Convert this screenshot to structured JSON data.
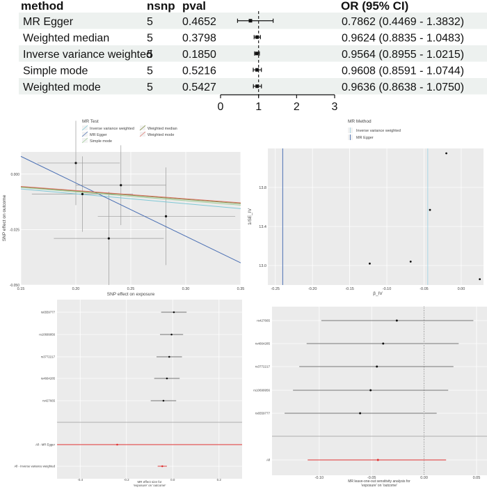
{
  "forest_table": {
    "headers": {
      "method": "method",
      "nsnp": "nsnp",
      "pval": "pval",
      "or": "OR (95% CI)"
    },
    "rows": [
      {
        "method": "MR Egger",
        "nsnp": "5",
        "pval": "0.4652",
        "or_ci": "0.7862 (0.4469 - 1.3832)"
      },
      {
        "method": "Weighted median",
        "nsnp": "5",
        "pval": "0.3798",
        "or_ci": "0.9624 (0.8835 - 1.0483)"
      },
      {
        "method": "Inverse variance weighted",
        "nsnp": "5",
        "pval": "0.1850",
        "or_ci": "0.9564 (0.8955 - 1.0215)"
      },
      {
        "method": "Simple mode",
        "nsnp": "5",
        "pval": "0.5216",
        "or_ci": "0.9608 (0.8591 - 1.0744)"
      },
      {
        "method": "Weighted mode",
        "nsnp": "5",
        "pval": "0.5427",
        "or_ci": "0.9636 (0.8638 - 1.0750)"
      }
    ],
    "stripe_color": "#edf1ef"
  },
  "chart_data": [
    {
      "type": "forest",
      "id": "or-forest",
      "points": [
        {
          "label": "MR Egger",
          "or": 0.7862,
          "lo": 0.4469,
          "hi": 1.3832
        },
        {
          "label": "Weighted median",
          "or": 0.9624,
          "lo": 0.8835,
          "hi": 1.0483
        },
        {
          "label": "Inverse variance weighted",
          "or": 0.9564,
          "lo": 0.8955,
          "hi": 1.0215
        },
        {
          "label": "Simple mode",
          "or": 0.9608,
          "lo": 0.8591,
          "hi": 1.0744
        },
        {
          "label": "Weighted mode",
          "or": 0.9636,
          "lo": 0.8638,
          "hi": 1.075
        }
      ],
      "xlim": [
        0,
        3
      ],
      "xticks": [
        "0",
        "1",
        "2",
        "3"
      ],
      "reference": 1
    },
    {
      "type": "scatter",
      "id": "mr-scatter",
      "xlabel": "SNP effect on exposure",
      "ylabel": "SNP effect on outcome",
      "xlim": [
        0.15,
        0.35
      ],
      "ylim": [
        -0.05,
        0.01
      ],
      "xticks": [
        "0.15",
        "0.20",
        "0.25",
        "0.30",
        "0.35"
      ],
      "yticks": [
        "-0.050",
        "-0.025",
        "0.000"
      ],
      "points": [
        {
          "x": 0.2,
          "y": 0.005,
          "xlo": 0.165,
          "xhi": 0.24,
          "ylo": -0.014,
          "yhi": 0.024
        },
        {
          "x": 0.206,
          "y": -0.009,
          "xlo": 0.16,
          "xhi": 0.252,
          "ylo": -0.026,
          "yhi": 0.008
        },
        {
          "x": 0.241,
          "y": -0.005,
          "xlo": 0.2,
          "xhi": 0.282,
          "ylo": -0.023,
          "yhi": 0.013
        },
        {
          "x": 0.23,
          "y": -0.029,
          "xlo": 0.18,
          "xhi": 0.28,
          "ylo": -0.05,
          "yhi": -0.008
        },
        {
          "x": 0.282,
          "y": -0.019,
          "xlo": 0.22,
          "xhi": 0.345,
          "ylo": -0.041,
          "yhi": 0.003
        }
      ],
      "lines": [
        {
          "name": "Inverse variance weighted",
          "slope": -0.0445,
          "intercept": 0,
          "color": "#7fc8d6"
        },
        {
          "name": "MR Egger",
          "slope": -0.24,
          "intercept": 0.044,
          "color": "#4a6fb3"
        },
        {
          "name": "Simple mode",
          "slope": -0.04,
          "intercept": 0,
          "color": "#9fce9a"
        },
        {
          "name": "Weighted median",
          "slope": -0.038,
          "intercept": 0,
          "color": "#7a8a3a"
        },
        {
          "name": "Weighted mode",
          "slope": -0.037,
          "intercept": 0,
          "color": "#e0786f"
        }
      ],
      "legend": {
        "title": "MR Test",
        "placement": "top",
        "items": [
          "Inverse variance weighted",
          "Weighted median",
          "MR Egger",
          "Weighted mode",
          "Simple mode"
        ]
      },
      "grid": true
    },
    {
      "type": "scatter",
      "id": "funnel",
      "xlabel": "β_IV",
      "ylabel": "1/SE_IV",
      "xlim": [
        -0.26,
        0.03
      ],
      "ylim": [
        12.8,
        14.2
      ],
      "xticks": [
        "-0.25",
        "-0.20",
        "-0.15",
        "-0.10",
        "-0.05",
        "0.00"
      ],
      "yticks": [
        "13.0",
        "13.4",
        "13.8"
      ],
      "points": [
        {
          "x": -0.02,
          "y": 14.15
        },
        {
          "x": -0.042,
          "y": 13.57
        },
        {
          "x": -0.068,
          "y": 13.04
        },
        {
          "x": -0.123,
          "y": 13.02
        },
        {
          "x": 0.025,
          "y": 12.86
        }
      ],
      "vlines": [
        {
          "name": "Inverse variance weighted",
          "x": -0.045,
          "color": "#a9d6e5"
        },
        {
          "name": "MR Egger",
          "x": -0.24,
          "color": "#4a6fb3"
        }
      ],
      "legend": {
        "title": "MR Method",
        "placement": "top",
        "items": [
          "Inverse variance weighted",
          "MR Egger"
        ]
      },
      "grid": true
    },
    {
      "type": "forest",
      "id": "single-snp",
      "xlabel_lines": [
        "MR effect size for",
        "'exposure' on 'outcome'"
      ],
      "xlim": [
        -0.5,
        0.3
      ],
      "xticks": [
        "-0.4",
        "-0.2",
        "0.0",
        "0.2"
      ],
      "rows": [
        {
          "label": "rs6559777",
          "est": 0.005,
          "lo": -0.05,
          "hi": 0.06,
          "color": "#111111"
        },
        {
          "label": "rs10699956",
          "est": -0.005,
          "lo": -0.055,
          "hi": 0.045,
          "color": "#111111"
        },
        {
          "label": "rs3772217",
          "est": -0.015,
          "lo": -0.07,
          "hi": 0.04,
          "color": "#111111"
        },
        {
          "label": "rs4664285",
          "est": -0.025,
          "lo": -0.08,
          "hi": 0.03,
          "color": "#111111"
        },
        {
          "label": "rs427665",
          "est": -0.04,
          "lo": -0.095,
          "hi": 0.015,
          "color": "#111111"
        },
        {
          "label": "All - MR Egger",
          "est": -0.24,
          "lo": -0.5,
          "hi": 0.3,
          "color": "#e03030"
        },
        {
          "label": "All - Inverse variance weighted",
          "est": -0.045,
          "lo": -0.065,
          "hi": -0.025,
          "color": "#e03030"
        }
      ],
      "reference": 0,
      "grid": true
    },
    {
      "type": "forest",
      "id": "leave-one-out",
      "xlabel_lines": [
        "MR leave-one-out sensitivity analysis for",
        "'exposure' on 'outcome'"
      ],
      "xlim": [
        -0.145,
        0.06
      ],
      "xticks": [
        "-0.10",
        "-0.05",
        "0.00",
        "0.05"
      ],
      "rows": [
        {
          "label": "rs427665",
          "est": -0.026,
          "lo": -0.098,
          "hi": 0.047,
          "color": "#111111"
        },
        {
          "label": "rs4664285",
          "est": -0.039,
          "lo": -0.112,
          "hi": 0.033,
          "color": "#111111"
        },
        {
          "label": "rs3772217",
          "est": -0.045,
          "lo": -0.119,
          "hi": 0.028,
          "color": "#111111"
        },
        {
          "label": "rs10699956",
          "est": -0.051,
          "lo": -0.125,
          "hi": 0.023,
          "color": "#111111"
        },
        {
          "label": "rs6559777",
          "est": -0.061,
          "lo": -0.133,
          "hi": 0.012,
          "color": "#111111"
        },
        {
          "label": "All",
          "est": -0.044,
          "lo": -0.111,
          "hi": 0.021,
          "color": "#e03030"
        }
      ],
      "reference": 0,
      "grid": true
    }
  ]
}
